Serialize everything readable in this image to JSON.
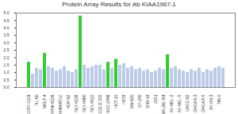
{
  "chart_data": {
    "type": "bar",
    "title": "Protein Array Results for Ab KIAA1967-1",
    "categories": [
      "CCRF-CEM",
      null,
      "HL-60",
      null,
      "MOLT-4",
      null,
      "RPMI-8226",
      null,
      "A549/ATCC",
      null,
      "HOP-62",
      null,
      "NCI-H226",
      null,
      "NCI-H460",
      null,
      "NCI-H522",
      null,
      "COLO 205",
      null,
      "HCC-2998",
      null,
      "HCT-15",
      null,
      "HT29",
      null,
      "SW-620",
      null,
      "SF-295",
      null,
      "SNB-19",
      null,
      "U251",
      null,
      "MALME-3M",
      null,
      "SK-MEL-2",
      null,
      "SK-MEL-5",
      null,
      "UACC-62",
      null,
      "OVCAR-3",
      null,
      "OVCAR-5",
      null,
      "SK-OV-3",
      null,
      "786-0",
      null
    ],
    "values": [
      1.7,
      0.9,
      1.3,
      1.2,
      2.3,
      1.4,
      1.3,
      1.1,
      1.2,
      1.4,
      1.1,
      1.0,
      1.2,
      4.8,
      1.5,
      1.3,
      1.4,
      1.5,
      1.5,
      1.2,
      1.7,
      1.3,
      1.9,
      1.5,
      1.6,
      1.3,
      1.4,
      1.2,
      1.3,
      1.1,
      1.2,
      1.0,
      1.1,
      1.3,
      1.2,
      2.2,
      1.3,
      1.4,
      1.2,
      1.1,
      1.0,
      1.2,
      1.1,
      1.3,
      1.0,
      1.2,
      1.1,
      1.3,
      1.4,
      1.3
    ],
    "colors": [
      "#33cc33",
      "#bccbe8",
      "#bccbe8",
      "#bccbe8",
      "#33cc33",
      "#bccbe8",
      "#bccbe8",
      "#bccbe8",
      "#bccbe8",
      "#bccbe8",
      "#bccbe8",
      "#bccbe8",
      "#bccbe8",
      "#33cc33",
      "#bccbe8",
      "#bccbe8",
      "#bccbe8",
      "#bccbe8",
      "#bccbe8",
      "#bccbe8",
      "#33cc33",
      "#bccbe8",
      "#33cc33",
      "#bccbe8",
      "#bccbe8",
      "#bccbe8",
      "#bccbe8",
      "#bccbe8",
      "#bccbe8",
      "#bccbe8",
      "#bccbe8",
      "#bccbe8",
      "#bccbe8",
      "#bccbe8",
      "#bccbe8",
      "#33cc33",
      "#bccbe8",
      "#bccbe8",
      "#bccbe8",
      "#bccbe8",
      "#bccbe8",
      "#bccbe8",
      "#bccbe8",
      "#bccbe8",
      "#bccbe8",
      "#bccbe8",
      "#bccbe8",
      "#bccbe8",
      "#bccbe8",
      "#bccbe8"
    ],
    "ylim": [
      0,
      5
    ],
    "yticks": [
      {
        "value": 0,
        "label": "0.0"
      },
      0.5,
      {
        "value": 1,
        "label": "1.0"
      },
      1.5,
      {
        "value": 2,
        "label": "2.0"
      },
      2.5,
      {
        "value": 3,
        "label": "3.0"
      },
      3.5,
      {
        "value": 4,
        "label": "4.0"
      },
      4.5,
      {
        "value": 5,
        "label": "5.0"
      }
    ],
    "grid": false
  }
}
